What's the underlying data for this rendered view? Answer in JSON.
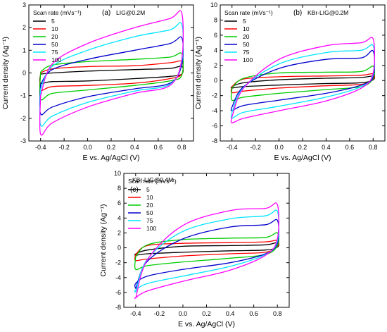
{
  "chart_data": [
    {
      "type": "line",
      "panel": "(a)",
      "title": "LIG@0.2M",
      "xlabel": "E vs. Ag/AgCl (V)",
      "ylabel": "Current  density (Ag⁻¹)",
      "xlim": [
        -0.5,
        0.9
      ],
      "ylim": [
        -3,
        3
      ],
      "xticks": [
        "-0.4",
        "-0.2",
        "0.0",
        "0.2",
        "0.4",
        "0.6",
        "0.8"
      ],
      "yticks": [
        "-3",
        "-2",
        "-1",
        "0",
        "1",
        "2",
        "3"
      ],
      "legend_title": "Scan rate (mVs⁻¹)",
      "legend_position": "top-left",
      "series": [
        {
          "name": "5",
          "color": "#000000",
          "upper": [
            [
              -0.4,
              -0.05
            ],
            [
              -0.3,
              0.0
            ],
            [
              0.0,
              0.08
            ],
            [
              0.4,
              0.15
            ],
            [
              0.7,
              0.2
            ],
            [
              0.8,
              0.3
            ]
          ],
          "lower": [
            [
              0.8,
              -0.05
            ],
            [
              0.7,
              -0.15
            ],
            [
              0.4,
              -0.25
            ],
            [
              0.0,
              -0.35
            ],
            [
              -0.3,
              -0.38
            ],
            [
              -0.4,
              -0.45
            ]
          ]
        },
        {
          "name": "10",
          "color": "#ff0000",
          "upper": [
            [
              -0.4,
              0.0
            ],
            [
              -0.3,
              0.18
            ],
            [
              0.0,
              0.28
            ],
            [
              0.4,
              0.32
            ],
            [
              0.7,
              0.45
            ],
            [
              0.8,
              0.5
            ]
          ],
          "lower": [
            [
              0.8,
              -0.05
            ],
            [
              0.7,
              -0.25
            ],
            [
              0.4,
              -0.45
            ],
            [
              0.0,
              -0.55
            ],
            [
              -0.3,
              -0.6
            ],
            [
              -0.4,
              -0.75
            ]
          ]
        },
        {
          "name": "20",
          "color": "#00cc00",
          "upper": [
            [
              -0.4,
              0.05
            ],
            [
              -0.3,
              0.35
            ],
            [
              0.0,
              0.5
            ],
            [
              0.4,
              0.6
            ],
            [
              0.7,
              0.7
            ],
            [
              0.8,
              0.85
            ]
          ],
          "lower": [
            [
              0.8,
              -0.1
            ],
            [
              0.7,
              -0.35
            ],
            [
              0.4,
              -0.55
            ],
            [
              0.0,
              -0.75
            ],
            [
              -0.3,
              -0.9
            ],
            [
              -0.4,
              -1.15
            ]
          ]
        },
        {
          "name": "50",
          "color": "#0000cc",
          "upper": [
            [
              -0.4,
              -0.5
            ],
            [
              -0.3,
              0.15
            ],
            [
              0.0,
              0.6
            ],
            [
              0.4,
              1.0
            ],
            [
              0.7,
              1.3
            ],
            [
              0.8,
              1.55
            ]
          ],
          "lower": [
            [
              0.8,
              0.35
            ],
            [
              0.7,
              -0.45
            ],
            [
              0.4,
              -0.7
            ],
            [
              0.0,
              -1.05
            ],
            [
              -0.3,
              -1.5
            ],
            [
              -0.4,
              -1.8
            ]
          ]
        },
        {
          "name": "75",
          "color": "#00e5ff",
          "upper": [
            [
              -0.4,
              -0.7
            ],
            [
              -0.3,
              0.3
            ],
            [
              0.0,
              1.0
            ],
            [
              0.4,
              1.6
            ],
            [
              0.7,
              1.9
            ],
            [
              0.8,
              2.15
            ]
          ],
          "lower": [
            [
              0.8,
              0.5
            ],
            [
              0.7,
              -0.5
            ],
            [
              0.4,
              -0.8
            ],
            [
              0.0,
              -1.3
            ],
            [
              -0.3,
              -1.9
            ],
            [
              -0.4,
              -2.3
            ]
          ]
        },
        {
          "name": "100",
          "color": "#ff00ff",
          "upper": [
            [
              -0.4,
              -1.0
            ],
            [
              -0.3,
              0.4
            ],
            [
              0.0,
              1.3
            ],
            [
              0.4,
              2.0
            ],
            [
              0.7,
              2.4
            ],
            [
              0.8,
              2.65
            ]
          ],
          "lower": [
            [
              0.8,
              0.6
            ],
            [
              0.7,
              -0.55
            ],
            [
              0.4,
              -0.9
            ],
            [
              0.0,
              -1.5
            ],
            [
              -0.3,
              -2.2
            ],
            [
              -0.4,
              -2.7
            ]
          ]
        }
      ]
    },
    {
      "type": "line",
      "panel": "(b)",
      "title": "KBr-LIG@0.2M",
      "xlabel": "E vs. Ag/AgCl (V)",
      "ylabel": "Current  density (Ag⁻¹)",
      "xlim": [
        -0.5,
        0.9
      ],
      "ylim": [
        -8,
        10
      ],
      "xticks": [
        "-0.4",
        "-0.2",
        "0.0",
        "0.2",
        "0.4",
        "0.6",
        "0.8"
      ],
      "yticks": [
        "-8",
        "-6",
        "-4",
        "-2",
        "0",
        "2",
        "4",
        "6",
        "8",
        "10"
      ],
      "legend_title": "Scan rate (mVs⁻¹)",
      "legend_position": "top-left",
      "series": [
        {
          "name": "5",
          "color": "#000000",
          "upper": [
            [
              -0.4,
              -0.8
            ],
            [
              -0.3,
              -0.3
            ],
            [
              0.0,
              0.1
            ],
            [
              0.4,
              0.3
            ],
            [
              0.7,
              0.4
            ],
            [
              0.8,
              0.6
            ]
          ],
          "lower": [
            [
              0.8,
              0.1
            ],
            [
              0.7,
              -0.3
            ],
            [
              0.4,
              -0.4
            ],
            [
              0.0,
              -0.6
            ],
            [
              -0.3,
              -0.8
            ],
            [
              -0.4,
              -1.0
            ]
          ]
        },
        {
          "name": "10",
          "color": "#ff0000",
          "upper": [
            [
              -0.4,
              -0.8
            ],
            [
              -0.3,
              0.2
            ],
            [
              0.0,
              0.5
            ],
            [
              0.4,
              0.6
            ],
            [
              0.7,
              0.7
            ],
            [
              0.8,
              0.9
            ]
          ],
          "lower": [
            [
              0.8,
              0.2
            ],
            [
              0.7,
              -0.5
            ],
            [
              0.4,
              -0.7
            ],
            [
              0.0,
              -1.0
            ],
            [
              -0.3,
              -1.4
            ],
            [
              -0.4,
              -1.6
            ]
          ]
        },
        {
          "name": "20",
          "color": "#00cc00",
          "upper": [
            [
              -0.4,
              -1.0
            ],
            [
              -0.3,
              0.3
            ],
            [
              0.0,
              1.0
            ],
            [
              0.4,
              1.1
            ],
            [
              0.7,
              1.2
            ],
            [
              0.8,
              1.9
            ]
          ],
          "lower": [
            [
              0.8,
              0.3
            ],
            [
              0.7,
              -0.8
            ],
            [
              0.4,
              -1.2
            ],
            [
              0.0,
              -1.7
            ],
            [
              -0.3,
              -2.2
            ],
            [
              -0.4,
              -2.6
            ]
          ]
        },
        {
          "name": "50",
          "color": "#0000cc",
          "upper": [
            [
              -0.4,
              -3.5
            ],
            [
              -0.3,
              -0.8
            ],
            [
              0.0,
              1.6
            ],
            [
              0.4,
              2.8
            ],
            [
              0.7,
              3.0
            ],
            [
              0.8,
              3.9
            ]
          ],
          "lower": [
            [
              0.8,
              0.5
            ],
            [
              0.7,
              -0.6
            ],
            [
              0.4,
              -1.7
            ],
            [
              0.0,
              -2.6
            ],
            [
              -0.3,
              -3.3
            ],
            [
              -0.4,
              -4.0
            ]
          ]
        },
        {
          "name": "75",
          "color": "#00e5ff",
          "upper": [
            [
              -0.4,
              -4.2
            ],
            [
              -0.3,
              -0.9
            ],
            [
              0.0,
              2.2
            ],
            [
              0.4,
              3.7
            ],
            [
              0.7,
              4.0
            ],
            [
              0.8,
              4.6
            ]
          ],
          "lower": [
            [
              0.8,
              0.8
            ],
            [
              0.7,
              -0.8
            ],
            [
              0.4,
              -2.2
            ],
            [
              0.0,
              -3.4
            ],
            [
              -0.3,
              -4.2
            ],
            [
              -0.4,
              -5.0
            ]
          ]
        },
        {
          "name": "100",
          "color": "#ff00ff",
          "upper": [
            [
              -0.4,
              -4.8
            ],
            [
              -0.3,
              -1.0
            ],
            [
              0.0,
              2.8
            ],
            [
              0.4,
              4.6
            ],
            [
              0.7,
              5.0
            ],
            [
              0.8,
              5.5
            ]
          ],
          "lower": [
            [
              0.8,
              1.0
            ],
            [
              0.7,
              -1.0
            ],
            [
              0.4,
              -2.7
            ],
            [
              0.0,
              -4.0
            ],
            [
              -0.3,
              -5.0
            ],
            [
              -0.4,
              -5.6
            ]
          ]
        }
      ]
    },
    {
      "type": "line",
      "panel": "(c)",
      "title": "KBr-LIG@0.4M",
      "xlabel": "E vs. Ag/AgCl (V)",
      "ylabel": "Current  density (Ag⁻¹)",
      "xlim": [
        -0.5,
        0.9
      ],
      "ylim": [
        -8,
        10
      ],
      "xticks": [
        "-0.4",
        "-0.2",
        "0.0",
        "0.2",
        "0.4",
        "0.6",
        "0.8"
      ],
      "yticks": [
        "-8",
        "-6",
        "-4",
        "-2",
        "0",
        "2",
        "4",
        "6",
        "8",
        "10"
      ],
      "legend_title": "Scan rate (mVs⁻¹)",
      "legend_position": "top-left",
      "series": [
        {
          "name": "5",
          "color": "#000000",
          "upper": [
            [
              -0.4,
              -0.8
            ],
            [
              -0.3,
              -0.3
            ],
            [
              0.0,
              0.2
            ],
            [
              0.4,
              0.3
            ],
            [
              0.7,
              0.4
            ],
            [
              0.8,
              0.7
            ]
          ],
          "lower": [
            [
              0.8,
              0.1
            ],
            [
              0.7,
              -0.3
            ],
            [
              0.4,
              -0.4
            ],
            [
              0.0,
              -0.6
            ],
            [
              -0.3,
              -0.8
            ],
            [
              -0.4,
              -1.0
            ]
          ]
        },
        {
          "name": "10",
          "color": "#ff0000",
          "upper": [
            [
              -0.4,
              -0.9
            ],
            [
              -0.3,
              0.3
            ],
            [
              0.0,
              0.6
            ],
            [
              0.4,
              0.7
            ],
            [
              0.7,
              0.8
            ],
            [
              0.8,
              1.0
            ]
          ],
          "lower": [
            [
              0.8,
              0.2
            ],
            [
              0.7,
              -0.6
            ],
            [
              0.4,
              -0.8
            ],
            [
              0.0,
              -1.1
            ],
            [
              -0.3,
              -1.5
            ],
            [
              -0.4,
              -1.7
            ]
          ]
        },
        {
          "name": "20",
          "color": "#00cc00",
          "upper": [
            [
              -0.4,
              -1.2
            ],
            [
              -0.3,
              0.4
            ],
            [
              0.0,
              1.1
            ],
            [
              0.4,
              1.3
            ],
            [
              0.7,
              1.4
            ],
            [
              0.8,
              2.0
            ]
          ],
          "lower": [
            [
              0.8,
              0.3
            ],
            [
              0.7,
              -0.9
            ],
            [
              0.4,
              -1.4
            ],
            [
              0.0,
              -1.9
            ],
            [
              -0.3,
              -2.4
            ],
            [
              -0.4,
              -2.9
            ]
          ]
        },
        {
          "name": "50",
          "color": "#0000cc",
          "upper": [
            [
              -0.4,
              -5.5
            ],
            [
              -0.3,
              -1.8
            ],
            [
              0.0,
              1.2
            ],
            [
              0.4,
              2.8
            ],
            [
              0.7,
              3.1
            ],
            [
              0.8,
              3.7
            ]
          ],
          "lower": [
            [
              0.8,
              0.6
            ],
            [
              0.7,
              -0.8
            ],
            [
              0.4,
              -2.0
            ],
            [
              0.0,
              -2.9
            ],
            [
              -0.3,
              -3.8
            ],
            [
              -0.4,
              -4.8
            ]
          ]
        },
        {
          "name": "75",
          "color": "#00e5ff",
          "upper": [
            [
              -0.4,
              -6.0
            ],
            [
              -0.3,
              -1.5
            ],
            [
              0.0,
              2.2
            ],
            [
              0.4,
              3.9
            ],
            [
              0.7,
              4.3
            ],
            [
              0.8,
              4.9
            ]
          ],
          "lower": [
            [
              0.8,
              0.9
            ],
            [
              0.7,
              -0.9
            ],
            [
              0.4,
              -2.5
            ],
            [
              0.0,
              -3.8
            ],
            [
              -0.3,
              -4.8
            ],
            [
              -0.4,
              -5.7
            ]
          ]
        },
        {
          "name": "100",
          "color": "#ff00ff",
          "upper": [
            [
              -0.4,
              -6.8
            ],
            [
              -0.3,
              -1.6
            ],
            [
              0.0,
              3.0
            ],
            [
              0.4,
              5.0
            ],
            [
              0.7,
              5.3
            ],
            [
              0.8,
              5.8
            ]
          ],
          "lower": [
            [
              0.8,
              1.2
            ],
            [
              0.7,
              -1.0
            ],
            [
              0.4,
              -3.0
            ],
            [
              0.0,
              -4.5
            ],
            [
              -0.3,
              -5.8
            ],
            [
              -0.4,
              -6.7
            ]
          ]
        }
      ]
    }
  ]
}
